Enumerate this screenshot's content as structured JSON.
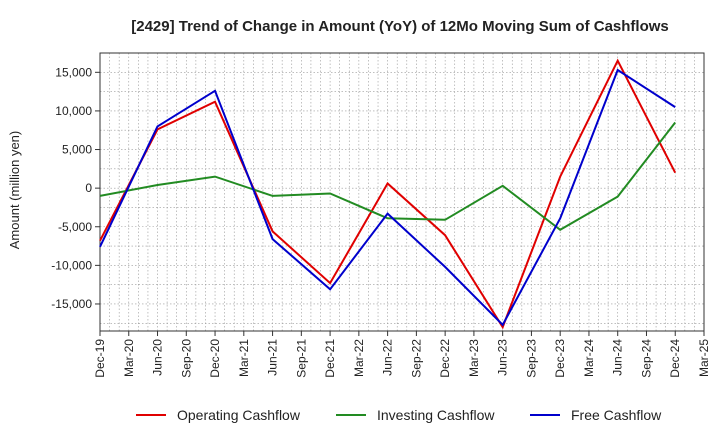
{
  "chart_data": {
    "type": "line",
    "title": "[2429]  Trend of Change in Amount (YoY) of 12Mo Moving Sum of Cashflows",
    "xlabel": "",
    "ylabel": "Amount (million yen)",
    "ylim": [
      -18500,
      17500
    ],
    "yticks": [
      15000,
      10000,
      5000,
      0,
      -5000,
      -10000,
      -15000
    ],
    "ytick_labels": [
      "15,000",
      "10,000",
      "5,000",
      "0",
      "-5,000",
      "-10,000",
      "-15,000"
    ],
    "categories": [
      "Dec-19",
      "Mar-20",
      "Jun-20",
      "Sep-20",
      "Dec-20",
      "Mar-21",
      "Jun-21",
      "Sep-21",
      "Dec-21",
      "Mar-22",
      "Jun-22",
      "Sep-22",
      "Dec-22",
      "Mar-23",
      "Jun-23",
      "Sep-23",
      "Dec-23",
      "Mar-24",
      "Jun-24",
      "Sep-24",
      "Dec-24",
      "Mar-25"
    ],
    "grid": true,
    "legend_position": "bottom",
    "series": [
      {
        "name": "Operating Cashflow",
        "color": "#e00000",
        "points": [
          [
            0,
            -6800
          ],
          [
            2,
            7600
          ],
          [
            4,
            11200
          ],
          [
            6,
            -5600
          ],
          [
            8,
            -12300
          ],
          [
            10,
            600
          ],
          [
            12,
            -6100
          ],
          [
            14,
            -18000
          ],
          [
            16,
            1500
          ],
          [
            18,
            16500
          ],
          [
            20,
            2000
          ]
        ]
      },
      {
        "name": "Investing Cashflow",
        "color": "#228b22",
        "points": [
          [
            0,
            -1000
          ],
          [
            2,
            400
          ],
          [
            4,
            1500
          ],
          [
            6,
            -1000
          ],
          [
            8,
            -700
          ],
          [
            10,
            -3900
          ],
          [
            12,
            -4100
          ],
          [
            14,
            300
          ],
          [
            16,
            -5400
          ],
          [
            18,
            -1100
          ],
          [
            20,
            8500
          ]
        ]
      },
      {
        "name": "Free Cashflow",
        "color": "#0000cc",
        "points": [
          [
            0,
            -7600
          ],
          [
            2,
            8000
          ],
          [
            4,
            12600
          ],
          [
            6,
            -6600
          ],
          [
            8,
            -13100
          ],
          [
            10,
            -3300
          ],
          [
            12,
            -10200
          ],
          [
            14,
            -17700
          ],
          [
            16,
            -3900
          ],
          [
            18,
            15300
          ],
          [
            20,
            10500
          ]
        ]
      }
    ]
  }
}
